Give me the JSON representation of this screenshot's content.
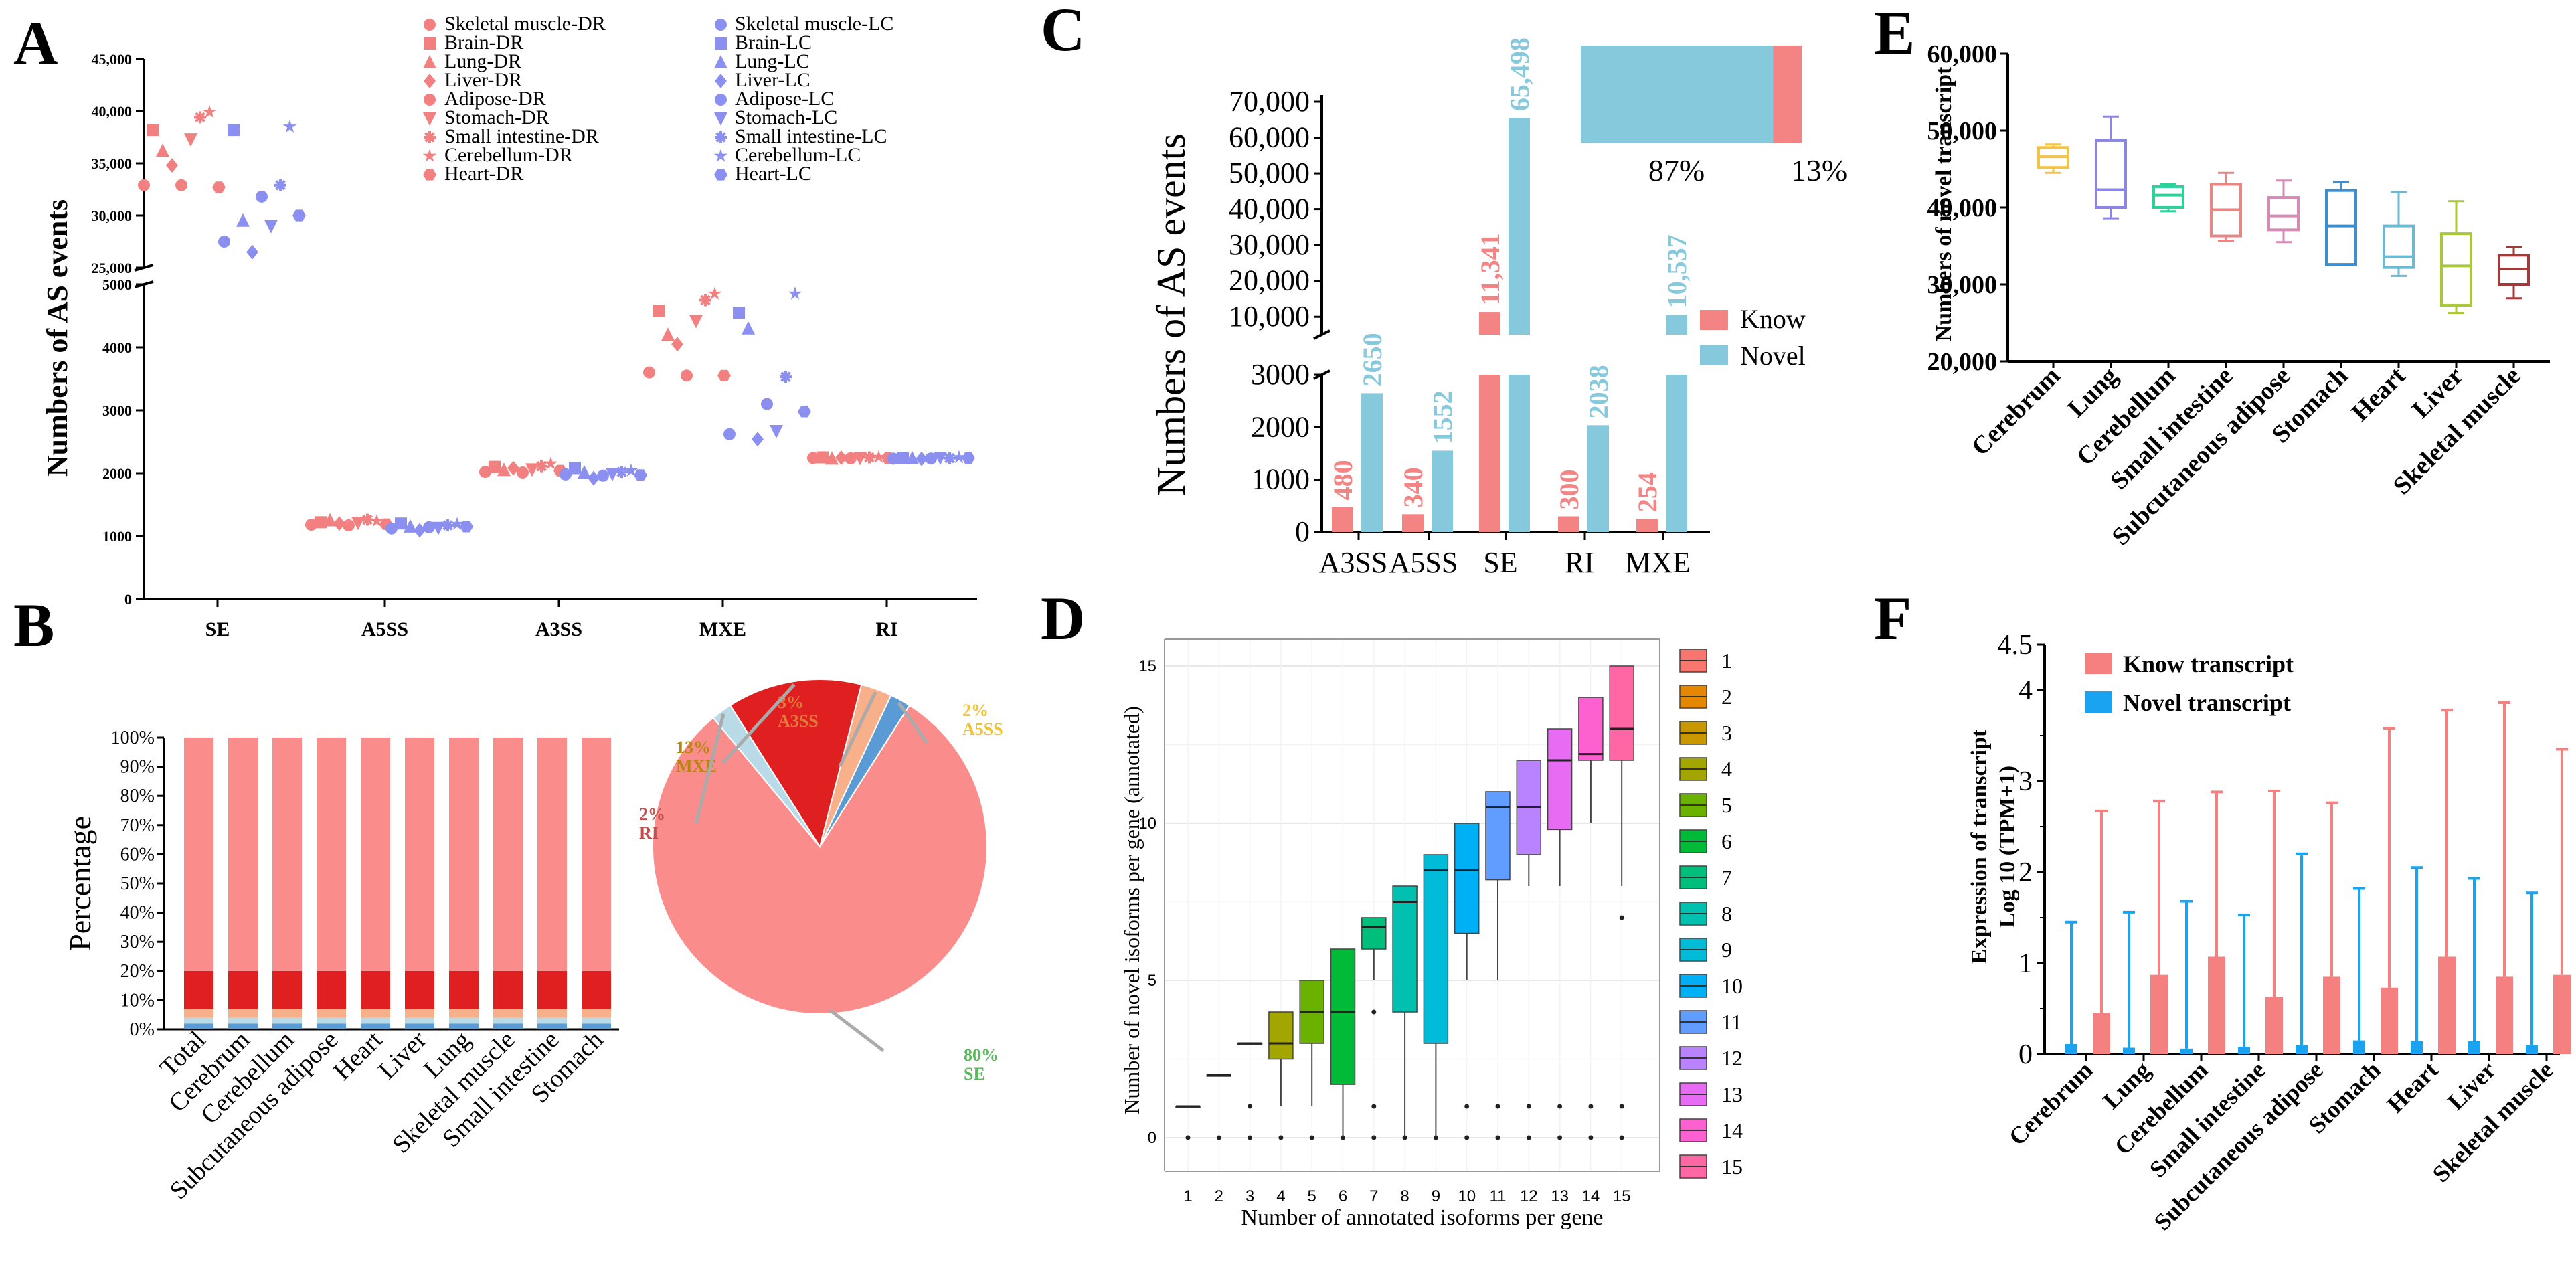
{
  "colors": {
    "dr": "#f28080",
    "lc": "#8a8ff0",
    "know": "#f48484",
    "novel": "#86c9dc",
    "grid": "#e8e8e8"
  },
  "panel_labels": [
    "A",
    "B",
    "C",
    "D",
    "E",
    "F"
  ],
  "chart_data": [
    {
      "id": "A",
      "type": "scatter",
      "ylabel": "Numbers of AS events",
      "categories": [
        "SE",
        "A5SS",
        "A3SS",
        "MXE",
        "RI"
      ],
      "yticks_low": [
        "0",
        "1000",
        "2000",
        "3000",
        "4000",
        "5000"
      ],
      "yticks_high": [
        "25,000",
        "30,000",
        "35,000",
        "40,000",
        "45,000"
      ],
      "legend_dr": [
        "Skeletal muscle-DR",
        "Brain-DR",
        "Lung-DR",
        "Liver-DR",
        "Adipose-DR",
        "Stomach-DR",
        "Small intestine-DR",
        "Cerebellum-DR",
        "Heart-DR"
      ],
      "legend_lc": [
        "Skeletal muscle-LC",
        "Brain-LC",
        "Lung-LC",
        "Liver-LC",
        "Adipose-LC",
        "Stomach-LC",
        "Small intestine-LC",
        "Cerebellum-LC",
        "Heart-LC"
      ],
      "markers": [
        "circle",
        "square",
        "triangle",
        "diamond",
        "circle",
        "tri-down",
        "asterisk",
        "star",
        "hexagon"
      ],
      "series_dr": [
        [
          32900,
          38200,
          36200,
          34800,
          32900,
          37300,
          39400,
          39900,
          32700
        ],
        [
          1180,
          1220,
          1250,
          1200,
          1170,
          1210,
          1260,
          1240,
          1190
        ],
        [
          2020,
          2100,
          2050,
          2080,
          2010,
          2060,
          2110,
          2150,
          2040
        ],
        [
          3600,
          4580,
          4200,
          4050,
          3550,
          4420,
          4750,
          4850,
          3550
        ],
        [
          2240,
          2250,
          2230,
          2245,
          2235,
          2240,
          2250,
          2255,
          2238
        ]
      ],
      "series_lc": [
        [
          27500,
          38200,
          29500,
          26500,
          31800,
          29000,
          32900,
          38500,
          30000
        ],
        [
          1120,
          1200,
          1150,
          1090,
          1140,
          1130,
          1170,
          1190,
          1150
        ],
        [
          1980,
          2080,
          2010,
          1920,
          1960,
          1990,
          2020,
          2040,
          1970
        ],
        [
          2620,
          4550,
          4300,
          2540,
          3100,
          2670,
          3530,
          4850,
          2980
        ],
        [
          2230,
          2240,
          2235,
          2228,
          2232,
          2245,
          2238,
          2250,
          2240
        ]
      ]
    },
    {
      "id": "B",
      "type": "stacked-bar+pie",
      "ylabel": "Percentage",
      "yticks": [
        "0%",
        "10%",
        "20%",
        "30%",
        "40%",
        "50%",
        "60%",
        "70%",
        "80%",
        "90%",
        "100%"
      ],
      "categories": [
        "Total",
        "Cerebrum",
        "Cerebellum",
        "Subcutaneous adipose",
        "Heart",
        "Liver",
        "Lung",
        "Skeletal muscle",
        "Small intestine",
        "Stomach"
      ],
      "segments": [
        {
          "name": "A5SS",
          "color": "#5a9bd5",
          "pct": 2
        },
        {
          "name": "RI",
          "color": "#b9dbe8",
          "pct": 2
        },
        {
          "name": "A3SS",
          "color": "#f7b08a",
          "pct": 3
        },
        {
          "name": "MXE",
          "color": "#e02020",
          "pct": 13
        },
        {
          "name": "SE",
          "color": "#fa8c8c",
          "pct": 80
        }
      ],
      "pie_labels": [
        {
          "pct": "3%",
          "name": "A3SS",
          "color": "#e07b3a"
        },
        {
          "pct": "2%",
          "name": "A5SS",
          "color": "#f2c230"
        },
        {
          "pct": "13%",
          "name": "MXE",
          "color": "#b8860b"
        },
        {
          "pct": "2%",
          "name": "RI",
          "color": "#c0504d"
        },
        {
          "pct": "80%",
          "name": "SE",
          "color": "#5cb85c"
        }
      ]
    },
    {
      "id": "C",
      "type": "bar",
      "ylabel": "Numbers of AS events",
      "categories": [
        "A3SS",
        "A5SS",
        "SE",
        "RI",
        "MXE"
      ],
      "series": [
        {
          "name": "Know",
          "values": [
            480,
            340,
            11341,
            300,
            254
          ]
        },
        {
          "name": "Novel",
          "values": [
            2650,
            1552,
            65498,
            2038,
            10537
          ]
        }
      ],
      "value_labels_know": [
        "480",
        "340",
        "11,341",
        "300",
        "254"
      ],
      "value_labels_novel": [
        "2650",
        "1552",
        "65,498",
        "2038",
        "10,537"
      ],
      "yticks_low": [
        "0",
        "1000",
        "2000",
        "3000"
      ],
      "yticks_high": [
        "10,000",
        "20,000",
        "30,000",
        "40,000",
        "50,000",
        "60,000",
        "70,000"
      ],
      "inset": {
        "novel_pct": "87%",
        "know_pct": "13%"
      }
    },
    {
      "id": "D",
      "type": "box",
      "xlabel": "Number of annotated isoforms per gene",
      "ylabel": "Number of novel isoforms per gene (annotated)",
      "x": [
        1,
        2,
        3,
        4,
        5,
        6,
        7,
        8,
        9,
        10,
        11,
        12,
        13,
        14,
        15
      ],
      "yticks": [
        "0",
        "5",
        "10",
        "15"
      ],
      "boxes": [
        {
          "q1": 1,
          "med": 1,
          "q3": 1,
          "lo": 1,
          "hi": 1
        },
        {
          "q1": 2,
          "med": 2,
          "q3": 2,
          "lo": 2,
          "hi": 2
        },
        {
          "q1": 3,
          "med": 3,
          "q3": 3,
          "lo": 3,
          "hi": 3
        },
        {
          "q1": 2.5,
          "med": 3,
          "q3": 4,
          "lo": 1,
          "hi": 4
        },
        {
          "q1": 3,
          "med": 4,
          "q3": 5,
          "lo": 1,
          "hi": 5
        },
        {
          "q1": 1.7,
          "med": 4,
          "q3": 6,
          "lo": 0,
          "hi": 6
        },
        {
          "q1": 6,
          "med": 6.7,
          "q3": 7,
          "lo": 5,
          "hi": 7
        },
        {
          "q1": 4,
          "med": 7.5,
          "q3": 8,
          "lo": 0,
          "hi": 8
        },
        {
          "q1": 3,
          "med": 8.5,
          "q3": 9,
          "lo": 0,
          "hi": 9
        },
        {
          "q1": 6.5,
          "med": 8.5,
          "q3": 10,
          "lo": 5,
          "hi": 10
        },
        {
          "q1": 8.2,
          "med": 10.5,
          "q3": 11,
          "lo": 5,
          "hi": 11
        },
        {
          "q1": 9,
          "med": 10.5,
          "q3": 12,
          "lo": 8,
          "hi": 12
        },
        {
          "q1": 9.8,
          "med": 12,
          "q3": 13,
          "lo": 8,
          "hi": 13
        },
        {
          "q1": 12,
          "med": 12.2,
          "q3": 14,
          "lo": 10,
          "hi": 14
        },
        {
          "q1": 12,
          "med": 13,
          "q3": 15,
          "lo": 8,
          "hi": 15
        }
      ],
      "legend": [
        "1",
        "2",
        "3",
        "4",
        "5",
        "6",
        "7",
        "8",
        "9",
        "10",
        "11",
        "12",
        "13",
        "14",
        "15"
      ],
      "palette": [
        "#f8766d",
        "#e58700",
        "#c99800",
        "#a3a500",
        "#6bb100",
        "#00ba38",
        "#00bf7d",
        "#00c0af",
        "#00bcd8",
        "#00b0f6",
        "#619cff",
        "#b983ff",
        "#e76bf3",
        "#fd61d1",
        "#ff67a4"
      ]
    },
    {
      "id": "E",
      "type": "box",
      "ylabel": "Numbers of novel transcript",
      "yticks": [
        "20,000",
        "30,000",
        "40,000",
        "50,000",
        "60,000"
      ],
      "categories": [
        "Cerebrum",
        "Lung",
        "Cerebellum",
        "Small intestine",
        "Subcutaneous adipose",
        "Stomach",
        "Heart",
        "Liver",
        "Skeletal muscle"
      ],
      "colors": [
        "#f5c242",
        "#8b85e8",
        "#2bd39a",
        "#e88585",
        "#d78ab3",
        "#3b8fd0",
        "#6bbad4",
        "#a8c935",
        "#a33a3a"
      ],
      "boxes": [
        {
          "lo": 44500,
          "q1": 45200,
          "med": 46600,
          "q3": 47800,
          "hi": 48200
        },
        {
          "lo": 38600,
          "q1": 40000,
          "med": 42300,
          "q3": 48700,
          "hi": 51800
        },
        {
          "lo": 39500,
          "q1": 40000,
          "med": 41600,
          "q3": 42700,
          "hi": 43000
        },
        {
          "lo": 35700,
          "q1": 36300,
          "med": 39700,
          "q3": 43000,
          "hi": 44500
        },
        {
          "lo": 35500,
          "q1": 37100,
          "med": 38900,
          "q3": 41300,
          "hi": 43500
        },
        {
          "lo": 32500,
          "q1": 32600,
          "med": 37600,
          "q3": 42200,
          "hi": 43300
        },
        {
          "lo": 31100,
          "q1": 32200,
          "med": 33600,
          "q3": 37600,
          "hi": 42000
        },
        {
          "lo": 26300,
          "q1": 27300,
          "med": 32400,
          "q3": 36600,
          "hi": 40800
        },
        {
          "lo": 28200,
          "q1": 30000,
          "med": 32000,
          "q3": 33800,
          "hi": 34900
        }
      ]
    },
    {
      "id": "F",
      "type": "bar",
      "ylabel_line1": "Expression of transcript",
      "ylabel_line2": "Log 10 (TPM+1)",
      "yticks": [
        "0",
        "1",
        "2",
        "3",
        "4",
        "4.5"
      ],
      "categories": [
        "Cerebrum",
        "Lung",
        "Cerebellum",
        "Small intestine",
        "Subcutaneous adipose",
        "Stomach",
        "Heart",
        "Liver",
        "Skeletal muscle"
      ],
      "series": [
        {
          "name": "Know transcript",
          "color": "#f58080",
          "values": [
            0.45,
            0.87,
            1.07,
            0.63,
            0.85,
            0.73,
            1.07,
            0.85,
            0.87
          ],
          "err": [
            2.67,
            2.78,
            2.88,
            2.89,
            2.76,
            3.58,
            3.78,
            3.86,
            3.35
          ]
        },
        {
          "name": "Novel transcript",
          "color": "#1aa3f0",
          "values": [
            0.11,
            0.07,
            0.06,
            0.08,
            0.1,
            0.15,
            0.14,
            0.14,
            0.1
          ],
          "err": [
            1.45,
            1.56,
            1.68,
            1.53,
            2.2,
            1.82,
            2.05,
            1.93,
            1.77
          ]
        }
      ]
    }
  ]
}
